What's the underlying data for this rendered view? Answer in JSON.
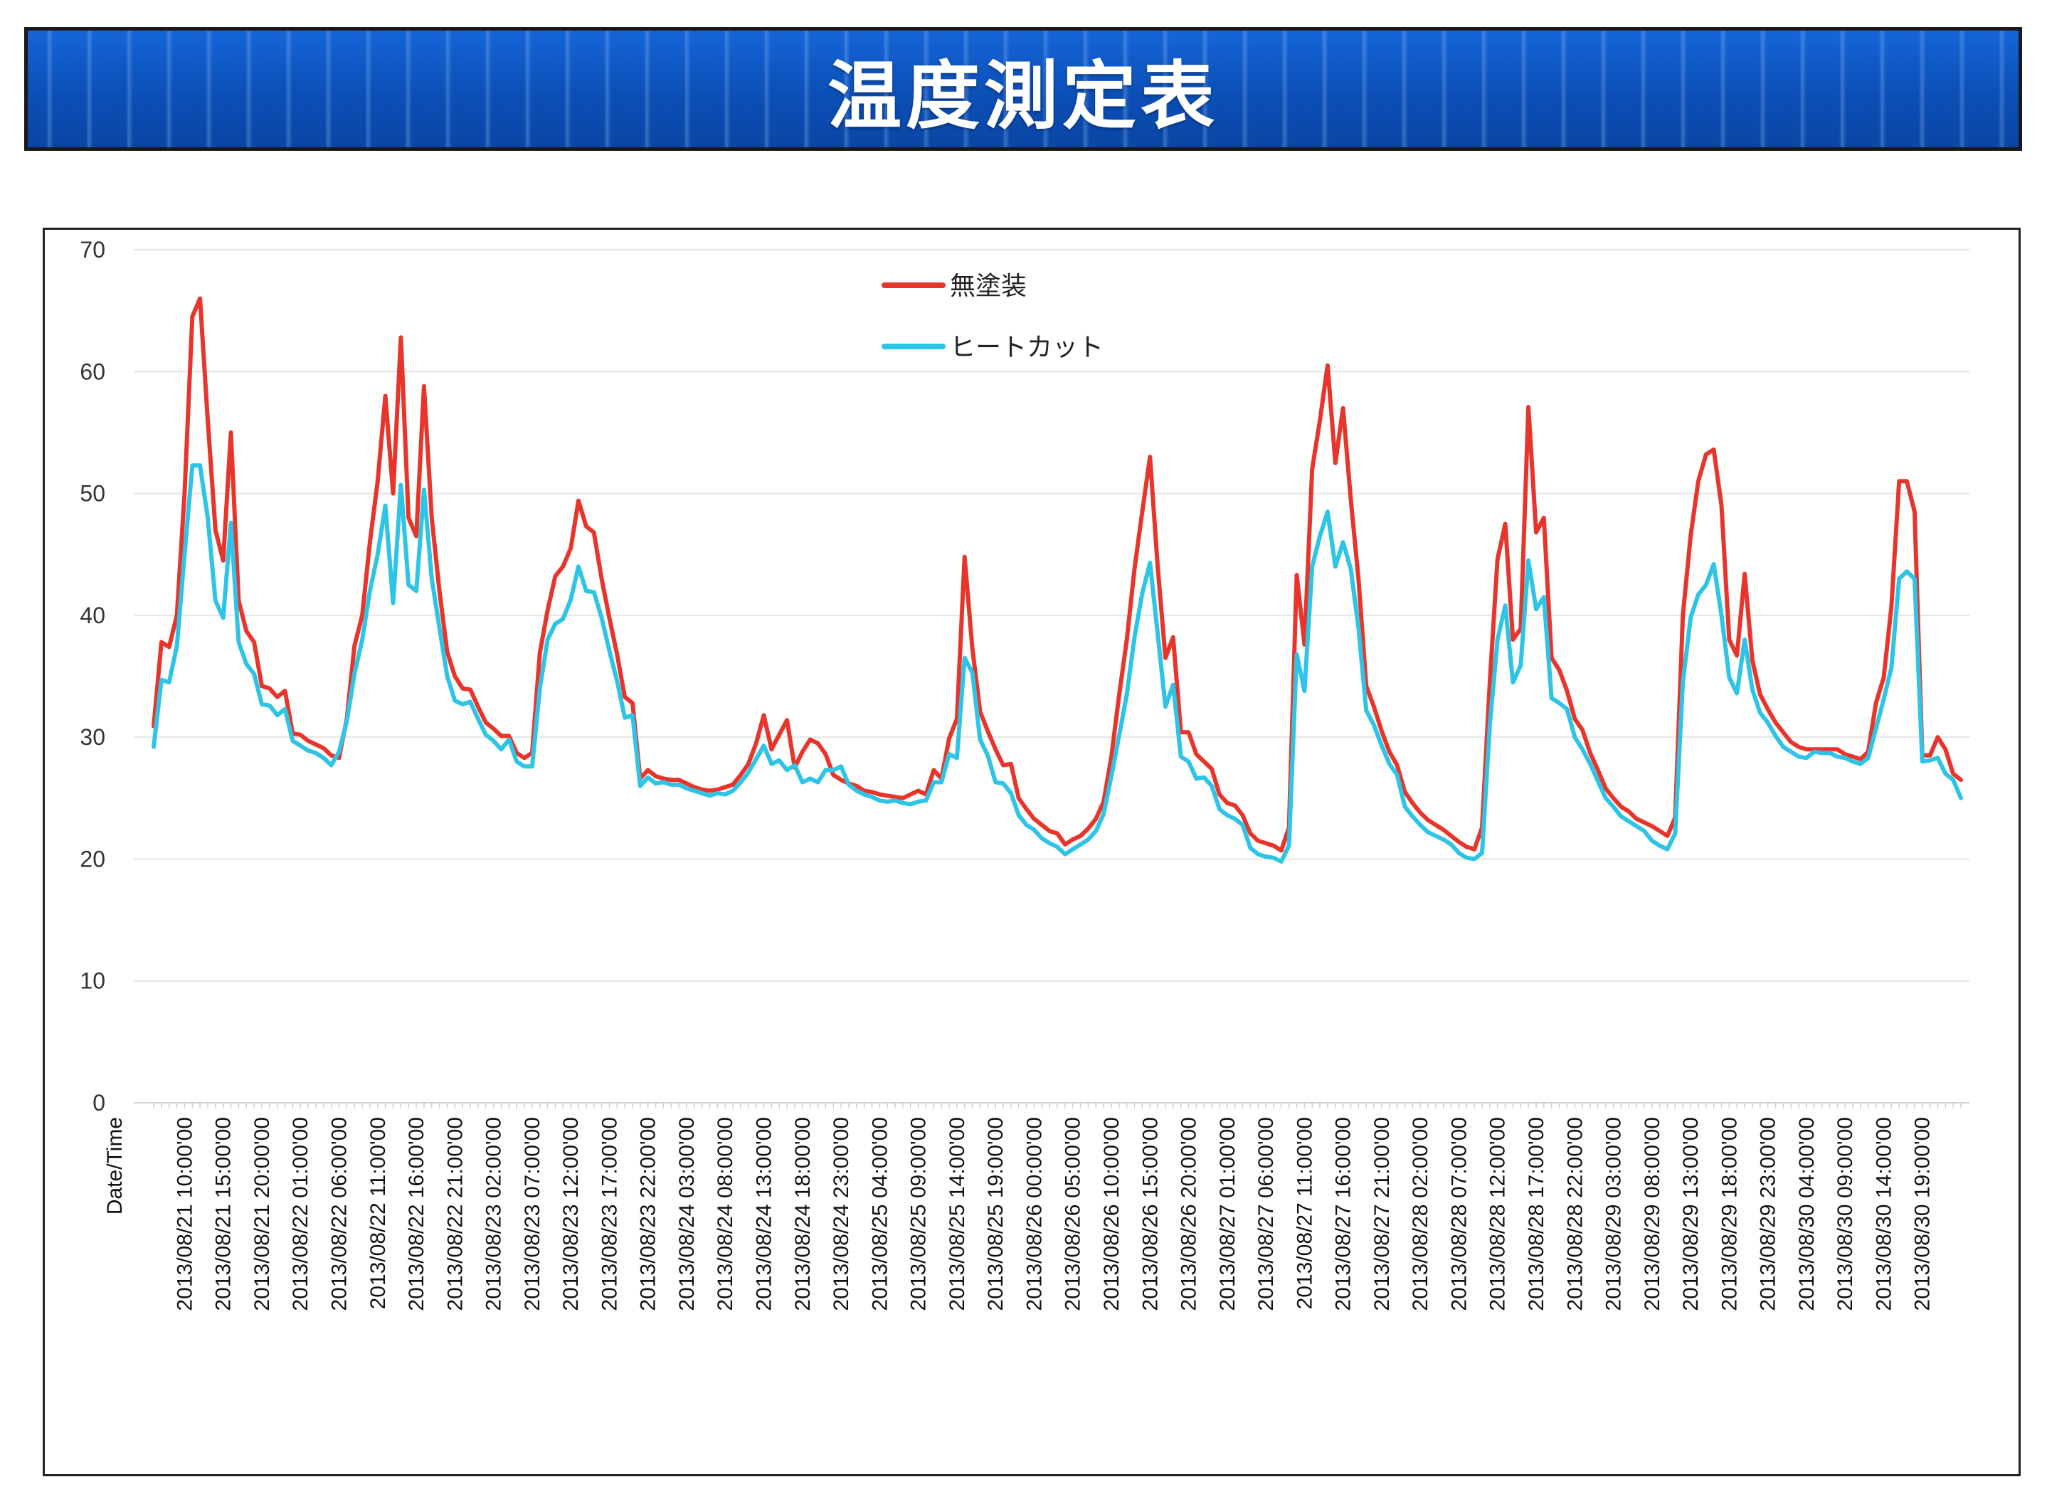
{
  "header": {
    "title": "温度測定表"
  },
  "colors": {
    "series_a": "#e8352c",
    "series_b": "#2ec4e6",
    "banner": "#0d52b8",
    "grid": "#e4e4e4"
  },
  "chart_data": {
    "type": "line",
    "title": "",
    "xlabel": "Date/Time",
    "ylabel": "",
    "ylim": [
      0,
      70
    ],
    "yticks": [
      0,
      10,
      20,
      30,
      40,
      50,
      60,
      70
    ],
    "grid": "horizontal",
    "legend": "top-center",
    "x_tick_labels": [
      "2013/08/21 10:00'00",
      "2013/08/21 15:00'00",
      "2013/08/21 20:00'00",
      "2013/08/22 01:00'00",
      "2013/08/22 06:00'00",
      "2013/08/22 11:00'00",
      "2013/08/22 16:00'00",
      "2013/08/22 21:00'00",
      "2013/08/23 02:00'00",
      "2013/08/23 07:00'00",
      "2013/08/23 12:00'00",
      "2013/08/23 17:00'00",
      "2013/08/23 22:00'00",
      "2013/08/24 03:00'00",
      "2013/08/24 08:00'00",
      "2013/08/24 13:00'00",
      "2013/08/24 18:00'00",
      "2013/08/24 23:00'00",
      "2013/08/25 04:00'00",
      "2013/08/25 09:00'00",
      "2013/08/25 14:00'00",
      "2013/08/25 19:00'00",
      "2013/08/26 00:00'00",
      "2013/08/26 05:00'00",
      "2013/08/26 10:00'00",
      "2013/08/26 15:00'00",
      "2013/08/26 20:00'00",
      "2013/08/27 01:00'00",
      "2013/08/27 06:00'00",
      "2013/08/27 11:00'00",
      "2013/08/27 16:00'00",
      "2013/08/27 21:00'00",
      "2013/08/28 02:00'00",
      "2013/08/28 07:00'00",
      "2013/08/28 12:00'00",
      "2013/08/28 17:00'00",
      "2013/08/28 22:00'00",
      "2013/08/29 03:00'00",
      "2013/08/29 08:00'00",
      "2013/08/29 13:00'00",
      "2013/08/29 18:00'00",
      "2013/08/29 23:00'00",
      "2013/08/30 04:00'00",
      "2013/08/30 09:00'00",
      "2013/08/30 14:00'00",
      "2013/08/30 19:00'00"
    ],
    "x_start": "2013/08/21 10:00'00",
    "x_step_hours": 1,
    "series": [
      {
        "name": "無塗装",
        "color": "#e8352c",
        "values": [
          30.9,
          37.8,
          37.4,
          40,
          50,
          64.5,
          66,
          56,
          47,
          44.5,
          55,
          41.2,
          38.7,
          37.8,
          34.2,
          34,
          33.3,
          33.8,
          30.3,
          30.2,
          29.7,
          29.4,
          29.1,
          28.5,
          28.3,
          31.5,
          37.5,
          40,
          46,
          51,
          58,
          50,
          62.8,
          48,
          46.5,
          58.8,
          48,
          42,
          37,
          35,
          34,
          33.9,
          32.5,
          31.2,
          30.7,
          30.1,
          30.1,
          28.7,
          28.3,
          28.7,
          36.9,
          40.4,
          43.2,
          44,
          45.5,
          49.4,
          47.3,
          46.8,
          43,
          39.8,
          36.8,
          33.3,
          32.8,
          26.6,
          27.3,
          26.8,
          26.6,
          26.5,
          26.5,
          26.2,
          25.9,
          25.7,
          25.6,
          25.7,
          25.9,
          26.1,
          26.9,
          27.8,
          29.5,
          31.8,
          29,
          30.2,
          31.4,
          27.5,
          28.8,
          29.8,
          29.5,
          28.6,
          26.9,
          26.5,
          26.2,
          26,
          25.6,
          25.5,
          25.3,
          25.2,
          25.1,
          25,
          25.3,
          25.6,
          25.3,
          27.3,
          26.6,
          29.9,
          31.5,
          44.8,
          37.3,
          32.1,
          30.5,
          29,
          27.7,
          27.8,
          25,
          24.1,
          23.3,
          22.8,
          22.3,
          22.1,
          21.2,
          21.6,
          21.9,
          22.5,
          23.3,
          24.7,
          28.4,
          33.4,
          38,
          43.8,
          48.5,
          53,
          44,
          36.5,
          38.2,
          30.4,
          30.4,
          28.6,
          28,
          27.4,
          25.3,
          24.6,
          24.4,
          23.6,
          22.1,
          21.5,
          21.3,
          21.1,
          20.7,
          22.6,
          43.3,
          37.6,
          52,
          56,
          60.5,
          52.5,
          57,
          49.5,
          43,
          34.2,
          32.5,
          30.5,
          28.8,
          27.7,
          25.5,
          24.6,
          23.8,
          23.2,
          22.8,
          22.4,
          21.9,
          21.4,
          21,
          20.8,
          22.6,
          34.5,
          44.6,
          47.5,
          38,
          38.9,
          57.1,
          46.8,
          48,
          36.5,
          35.5,
          33.8,
          31.5,
          30.6,
          28.7,
          27.3,
          25.8,
          25,
          24.3,
          23.9,
          23.3,
          23,
          22.7,
          22.3,
          21.9,
          23.4,
          40,
          46.5,
          51,
          53.2,
          53.6,
          49,
          38,
          36.7,
          43.4,
          36.3,
          33.5,
          32.3,
          31.2,
          30.4,
          29.6,
          29.2,
          29,
          29,
          29,
          29,
          29,
          28.6,
          28.4,
          28.2,
          28.8,
          32.8,
          34.9,
          40.7,
          51,
          51,
          48.5,
          28.5,
          28.5,
          30,
          29,
          27,
          26.5
        ]
      },
      {
        "name": "ヒートカット",
        "color": "#2ec4e6",
        "values": [
          29.2,
          34.7,
          34.5,
          37.5,
          45,
          52.3,
          52.3,
          48,
          41.2,
          39.8,
          47.6,
          37.8,
          36,
          35.2,
          32.7,
          32.6,
          31.8,
          32.3,
          29.7,
          29.3,
          28.9,
          28.7,
          28.3,
          27.7,
          28.8,
          31.3,
          35.2,
          38,
          42,
          45,
          49,
          41,
          50.7,
          42.5,
          42,
          50.3,
          43,
          39,
          35,
          33,
          32.7,
          32.9,
          31.5,
          30.2,
          29.7,
          29,
          29.8,
          28,
          27.6,
          27.6,
          34,
          38,
          39.3,
          39.7,
          41.3,
          44,
          42,
          41.9,
          39.8,
          37.1,
          34.6,
          31.6,
          31.8,
          26,
          26.7,
          26.2,
          26.3,
          26.1,
          26.1,
          25.8,
          25.6,
          25.4,
          25.2,
          25.4,
          25.3,
          25.6,
          26.3,
          27.1,
          28.2,
          29.3,
          27.8,
          28.1,
          27.3,
          27.7,
          26.3,
          26.6,
          26.3,
          27.3,
          27.3,
          27.6,
          26.1,
          25.6,
          25.3,
          25.1,
          24.8,
          24.7,
          24.8,
          24.6,
          24.5,
          24.7,
          24.8,
          26.3,
          26.3,
          28.6,
          28.3,
          36.5,
          35.3,
          29.8,
          28.5,
          26.3,
          26.2,
          25.4,
          23.6,
          22.8,
          22.4,
          21.7,
          21.3,
          21,
          20.4,
          20.8,
          21.2,
          21.6,
          22.3,
          23.7,
          26.8,
          30.1,
          33.5,
          38.2,
          41.8,
          44.3,
          38.5,
          32.5,
          34.3,
          28.4,
          28,
          26.6,
          26.7,
          26,
          24.1,
          23.6,
          23.3,
          22.8,
          20.9,
          20.4,
          20.2,
          20.1,
          19.8,
          21.1,
          36.8,
          33.8,
          44,
          46.5,
          48.5,
          44,
          46,
          43.8,
          39,
          32.2,
          31,
          29.3,
          27.8,
          26.9,
          24.3,
          23.5,
          22.8,
          22.2,
          21.9,
          21.6,
          21.2,
          20.5,
          20.1,
          20,
          20.5,
          31,
          38,
          40.8,
          34.5,
          35.9,
          44.5,
          40.5,
          41.5,
          33.2,
          32.8,
          32.3,
          30,
          29,
          27.8,
          26.4,
          25,
          24.3,
          23.5,
          23.1,
          22.7,
          22.3,
          21.5,
          21.1,
          20.8,
          22.1,
          34.5,
          39.8,
          41.7,
          42.5,
          44.2,
          40,
          34.9,
          33.6,
          38,
          33.9,
          32,
          31.2,
          30.1,
          29.2,
          28.8,
          28.4,
          28.3,
          28.8,
          28.7,
          28.7,
          28.4,
          28.3,
          28,
          27.8,
          28.3,
          30.7,
          33.1,
          35.7,
          43,
          43.6,
          43,
          28,
          28.1,
          28.3,
          27,
          26.5,
          25
        ]
      }
    ]
  }
}
